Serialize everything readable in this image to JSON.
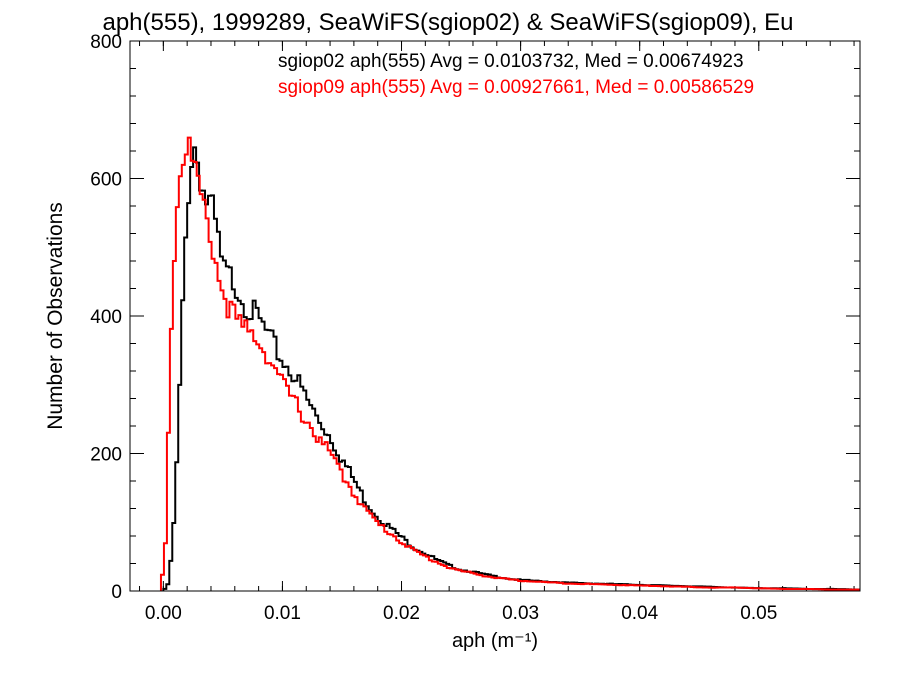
{
  "chart_data": {
    "type": "line",
    "title": "aph(555), 1999289, SeaWiFS(sgiop02) & SeaWiFS(sgiop09), Eu",
    "xlabel": "aph (m⁻¹)",
    "ylabel": "Number of Observations",
    "xlim": [
      -0.0028,
      0.0585
    ],
    "ylim": [
      0,
      800
    ],
    "xticks": [
      0.0,
      0.01,
      0.02,
      0.03,
      0.04,
      0.05
    ],
    "xtick_labels": [
      "0.00",
      "0.01",
      "0.02",
      "0.03",
      "0.04",
      "0.05"
    ],
    "yticks": [
      0,
      200,
      400,
      600,
      800
    ],
    "ytick_labels": [
      "0",
      "200",
      "400",
      "600",
      "800"
    ],
    "grid": false,
    "legend": "top-right",
    "series": [
      {
        "name": "sgiop02",
        "label": "sgiop02 aph(555) Avg = 0.0103732, Med = 0.00674923",
        "color": "#000000",
        "points": [
          [
            0.0,
            0
          ],
          [
            0.0004,
            10
          ],
          [
            0.0008,
            70
          ],
          [
            0.0012,
            210
          ],
          [
            0.0016,
            400
          ],
          [
            0.002,
            560
          ],
          [
            0.0025,
            655
          ],
          [
            0.003,
            620
          ],
          [
            0.0035,
            570
          ],
          [
            0.004,
            560
          ],
          [
            0.0045,
            520
          ],
          [
            0.005,
            465
          ],
          [
            0.006,
            450
          ],
          [
            0.007,
            415
          ],
          [
            0.008,
            395
          ],
          [
            0.009,
            365
          ],
          [
            0.01,
            335
          ],
          [
            0.011,
            315
          ],
          [
            0.012,
            280
          ],
          [
            0.013,
            250
          ],
          [
            0.014,
            225
          ],
          [
            0.015,
            192
          ],
          [
            0.016,
            162
          ],
          [
            0.017,
            130
          ],
          [
            0.018,
            108
          ],
          [
            0.019,
            93
          ],
          [
            0.02,
            78
          ],
          [
            0.021,
            64
          ],
          [
            0.022,
            55
          ],
          [
            0.023,
            45
          ],
          [
            0.024,
            37
          ],
          [
            0.025,
            31
          ],
          [
            0.026,
            28
          ],
          [
            0.027,
            24
          ],
          [
            0.028,
            21
          ],
          [
            0.029,
            18
          ],
          [
            0.03,
            16
          ],
          [
            0.032,
            14
          ],
          [
            0.034,
            12
          ],
          [
            0.036,
            11
          ],
          [
            0.038,
            10
          ],
          [
            0.04,
            9
          ],
          [
            0.042,
            8
          ],
          [
            0.044,
            7
          ],
          [
            0.046,
            6
          ],
          [
            0.048,
            5
          ],
          [
            0.05,
            4
          ],
          [
            0.052,
            4
          ],
          [
            0.054,
            3
          ],
          [
            0.056,
            3
          ],
          [
            0.0585,
            2
          ]
        ]
      },
      {
        "name": "sgiop09",
        "label": "sgiop09 aph(555) Avg = 0.00927661, Med = 0.00586529",
        "color": "#ff0000",
        "points": [
          [
            -0.0002,
            0
          ],
          [
            0.0002,
            75
          ],
          [
            0.0006,
            360
          ],
          [
            0.001,
            530
          ],
          [
            0.0015,
            625
          ],
          [
            0.002,
            655
          ],
          [
            0.0025,
            620
          ],
          [
            0.003,
            580
          ],
          [
            0.0035,
            540
          ],
          [
            0.004,
            520
          ],
          [
            0.0045,
            470
          ],
          [
            0.005,
            435
          ],
          [
            0.006,
            395
          ],
          [
            0.007,
            375
          ],
          [
            0.008,
            370
          ],
          [
            0.009,
            335
          ],
          [
            0.01,
            300
          ],
          [
            0.011,
            275
          ],
          [
            0.012,
            250
          ],
          [
            0.013,
            222
          ],
          [
            0.014,
            200
          ],
          [
            0.015,
            170
          ],
          [
            0.016,
            143
          ],
          [
            0.017,
            118
          ],
          [
            0.018,
            98
          ],
          [
            0.019,
            85
          ],
          [
            0.02,
            72
          ],
          [
            0.021,
            59
          ],
          [
            0.022,
            50
          ],
          [
            0.023,
            42
          ],
          [
            0.024,
            34
          ],
          [
            0.025,
            29
          ],
          [
            0.026,
            26
          ],
          [
            0.027,
            22
          ],
          [
            0.028,
            19
          ],
          [
            0.029,
            17
          ],
          [
            0.03,
            15
          ],
          [
            0.032,
            13
          ],
          [
            0.034,
            11
          ],
          [
            0.036,
            10
          ],
          [
            0.038,
            9
          ],
          [
            0.04,
            8
          ],
          [
            0.042,
            7
          ],
          [
            0.044,
            6
          ],
          [
            0.046,
            5
          ],
          [
            0.048,
            5
          ],
          [
            0.05,
            4
          ],
          [
            0.052,
            3
          ],
          [
            0.054,
            3
          ],
          [
            0.056,
            2
          ],
          [
            0.0585,
            2
          ]
        ]
      }
    ]
  }
}
